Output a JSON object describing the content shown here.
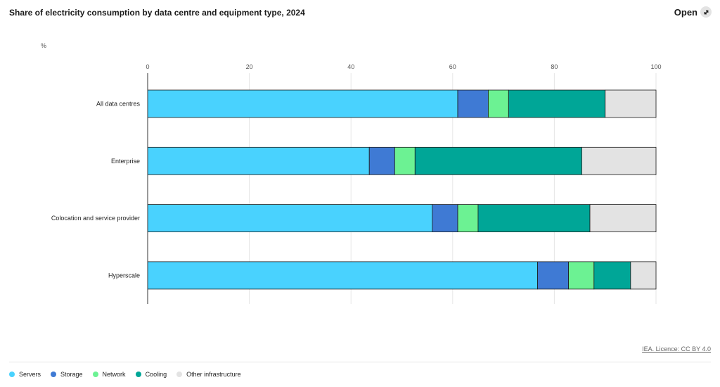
{
  "header": {
    "title": "Share of electricity consumption by data centre and equipment type, 2024",
    "open_label": "Open",
    "open_icon": "external-link-icon"
  },
  "chart_data": {
    "type": "bar",
    "orientation": "horizontal",
    "stacked": true,
    "title": "Share of electricity consumption by data centre and equipment type, 2024",
    "unit_label": "%",
    "xlim": [
      0,
      100
    ],
    "ticks": [
      "0",
      "20",
      "40",
      "60",
      "80",
      "100"
    ],
    "tick_values": [
      0,
      20,
      40,
      60,
      80,
      100
    ],
    "categories": [
      "All data centres",
      "Enterprise",
      "Colocation and service provider",
      "Hyperscale"
    ],
    "series": [
      {
        "name": "Servers",
        "color": "#49d2fe",
        "values": [
          61,
          43.6,
          56,
          76.7
        ]
      },
      {
        "name": "Storage",
        "color": "#3f7ad4",
        "values": [
          6,
          5,
          5,
          6.1
        ]
      },
      {
        "name": "Network",
        "color": "#6cf293",
        "values": [
          4,
          4,
          4,
          5
        ]
      },
      {
        "name": "Cooling",
        "color": "#00a697",
        "values": [
          19,
          32.8,
          22,
          7.2
        ]
      },
      {
        "name": "Other infrastructure",
        "color": "#e3e3e3",
        "values": [
          10,
          14.6,
          13,
          5
        ]
      }
    ],
    "grid": true,
    "legend_position": "bottom-left"
  },
  "footer": {
    "source": "IEA. Licence: CC BY 4.0"
  }
}
